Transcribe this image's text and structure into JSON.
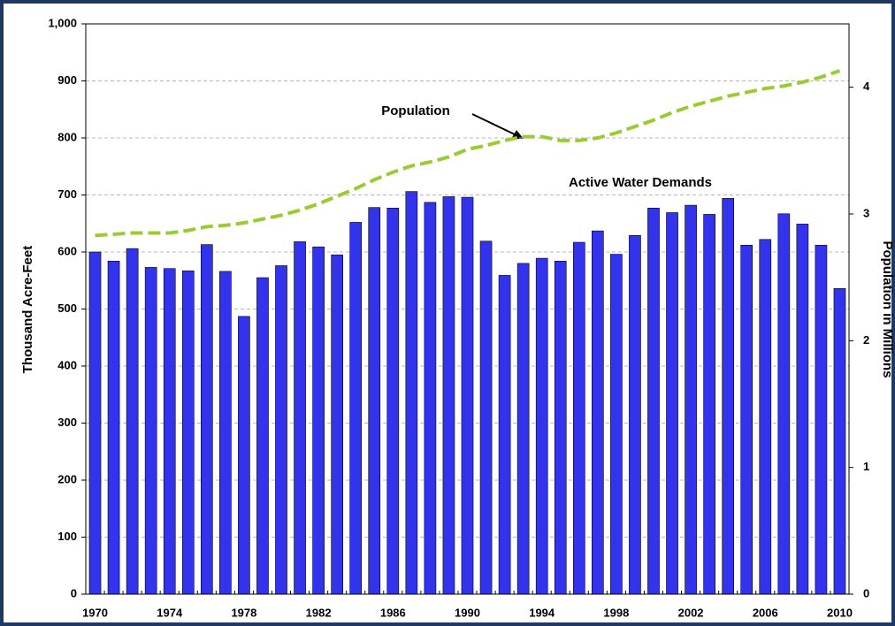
{
  "chart_data": {
    "type": "bar",
    "y_label": "Thousand Acre-Feet",
    "y2_label": "Population in Millions",
    "annotations": [
      "Population",
      "Active Water Demands"
    ],
    "categories": [
      "1970",
      null,
      null,
      null,
      "1974",
      null,
      null,
      null,
      "1978",
      null,
      null,
      null,
      "1982",
      null,
      null,
      null,
      "1986",
      null,
      null,
      null,
      "1990",
      null,
      null,
      null,
      "1994",
      null,
      null,
      null,
      "1998",
      null,
      null,
      null,
      "2002",
      null,
      null,
      null,
      "2006",
      null,
      null,
      null,
      "2010"
    ],
    "series": [
      {
        "name": "Active Water Demands",
        "type": "bar",
        "color": "#3333ee",
        "values": [
          600,
          584,
          606,
          573,
          571,
          567,
          613,
          566,
          487,
          555,
          576,
          618,
          609,
          595,
          652,
          678,
          677,
          706,
          687,
          697,
          696,
          619,
          559,
          580,
          589,
          584,
          617,
          637,
          596,
          629,
          677,
          669,
          682,
          666,
          694,
          612,
          622,
          667,
          649,
          612,
          536
        ]
      },
      {
        "name": "Population",
        "type": "line",
        "axis": "y2",
        "color": "#99cc33",
        "values": [
          2.83,
          2.84,
          2.85,
          2.85,
          2.85,
          2.87,
          2.9,
          2.91,
          2.93,
          2.96,
          2.99,
          3.03,
          3.08,
          3.14,
          3.2,
          3.27,
          3.33,
          3.38,
          3.41,
          3.45,
          3.51,
          3.54,
          3.58,
          3.61,
          3.61,
          3.58,
          3.58,
          3.6,
          3.64,
          3.69,
          3.74,
          3.8,
          3.85,
          3.89,
          3.93,
          3.96,
          3.99,
          4.01,
          4.04,
          4.08,
          4.13
        ]
      }
    ],
    "ylim": [
      0,
      1000
    ],
    "yticks": [
      0,
      100,
      200,
      300,
      400,
      500,
      600,
      700,
      800,
      900,
      {
        "value": 1000,
        "label": "1,000"
      }
    ],
    "y2lim": [
      0,
      4.5
    ],
    "y2ticks": [
      0,
      1,
      2,
      3,
      4
    ],
    "grid": true
  }
}
